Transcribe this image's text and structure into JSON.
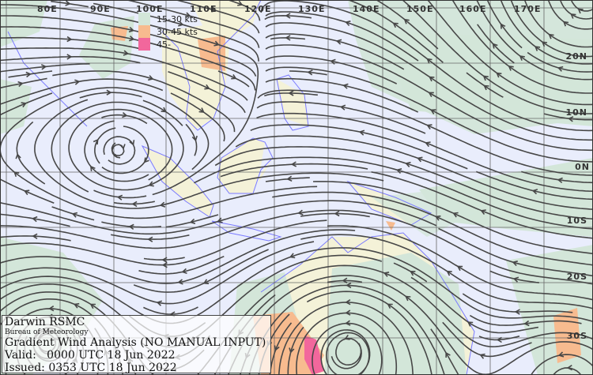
{
  "longitude_labels": [
    "80E",
    "90E",
    "100E",
    "110E",
    "120E",
    "130E",
    "140E",
    "150E",
    "160E",
    "170E"
  ],
  "latitude_labels": [
    "20N",
    "10N",
    "0N",
    "10S",
    "20S",
    "30S"
  ],
  "legend": [
    {
      "label": "15-30 kts",
      "color": "#d3e6d9"
    },
    {
      "label": "30-45 kts",
      "color": "#f7bb8f"
    },
    {
      "label": "45-",
      "color": "#f2679c"
    }
  ],
  "colors": {
    "background": "#e9edfc",
    "land": "#f4f2d8",
    "streamline": "#474747",
    "coastline": "#7b7bff",
    "grid": "#666666"
  },
  "info": {
    "centre": "Darwin RSMC",
    "agency": "Bureau of Meteorology",
    "product": "Gradient Wind Analysis (NO MANUAL INPUT)",
    "valid": "Valid:   0000 UTC 18 Jun 2022",
    "issued": "Issued: 0353 UTC 18 Jun 2022"
  }
}
